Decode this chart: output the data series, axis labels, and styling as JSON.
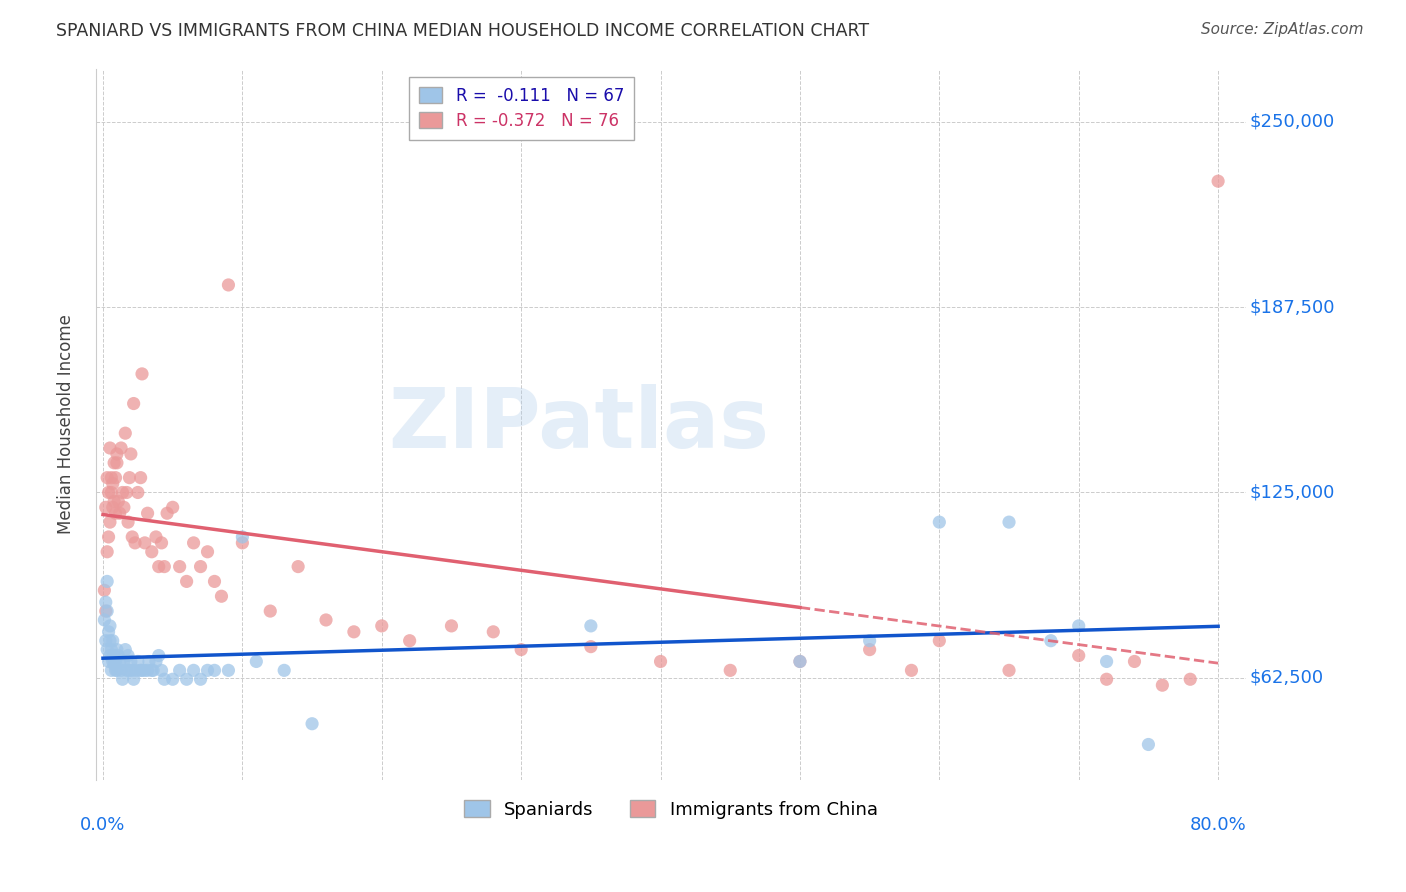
{
  "title": "SPANIARD VS IMMIGRANTS FROM CHINA MEDIAN HOUSEHOLD INCOME CORRELATION CHART",
  "source": "Source: ZipAtlas.com",
  "ylabel": "Median Household Income",
  "ytick_labels": [
    "$62,500",
    "$125,000",
    "$187,500",
    "$250,000"
  ],
  "ytick_values": [
    62500,
    125000,
    187500,
    250000
  ],
  "ylim": [
    28000,
    268000
  ],
  "xlim": [
    -0.005,
    0.82
  ],
  "watermark": "ZIPatlas",
  "spaniards_color": "#9fc5e8",
  "china_color": "#ea9999",
  "spaniards_line_color": "#1155cc",
  "china_line_color": "#e06070",
  "background_color": "#ffffff",
  "grid_color": "#cccccc",
  "legend_label_sp": "R =  -0.111   N = 67",
  "legend_label_ch": "R = -0.372   N = 76",
  "sp_x": [
    0.001,
    0.002,
    0.002,
    0.003,
    0.003,
    0.003,
    0.004,
    0.004,
    0.005,
    0.005,
    0.005,
    0.006,
    0.006,
    0.007,
    0.007,
    0.008,
    0.008,
    0.009,
    0.009,
    0.01,
    0.01,
    0.011,
    0.012,
    0.013,
    0.014,
    0.015,
    0.016,
    0.017,
    0.018,
    0.019,
    0.02,
    0.021,
    0.022,
    0.024,
    0.025,
    0.027,
    0.028,
    0.03,
    0.032,
    0.033,
    0.035,
    0.036,
    0.038,
    0.04,
    0.042,
    0.044,
    0.05,
    0.055,
    0.06,
    0.065,
    0.07,
    0.075,
    0.08,
    0.09,
    0.1,
    0.11,
    0.13,
    0.15,
    0.35,
    0.5,
    0.55,
    0.6,
    0.65,
    0.68,
    0.7,
    0.72,
    0.75
  ],
  "sp_y": [
    82000,
    75000,
    88000,
    95000,
    72000,
    85000,
    78000,
    68000,
    75000,
    70000,
    80000,
    65000,
    72000,
    68000,
    75000,
    67000,
    70000,
    65000,
    68000,
    72000,
    65000,
    70000,
    68000,
    65000,
    62000,
    68000,
    72000,
    65000,
    70000,
    65000,
    68000,
    65000,
    62000,
    65000,
    68000,
    65000,
    65000,
    65000,
    65000,
    68000,
    65000,
    65000,
    68000,
    70000,
    65000,
    62000,
    62000,
    65000,
    62000,
    65000,
    62000,
    65000,
    65000,
    65000,
    110000,
    68000,
    65000,
    47000,
    80000,
    68000,
    75000,
    115000,
    115000,
    75000,
    80000,
    68000,
    40000
  ],
  "ch_x": [
    0.001,
    0.002,
    0.002,
    0.003,
    0.003,
    0.004,
    0.004,
    0.005,
    0.005,
    0.006,
    0.006,
    0.007,
    0.007,
    0.008,
    0.008,
    0.009,
    0.009,
    0.01,
    0.01,
    0.011,
    0.012,
    0.013,
    0.014,
    0.015,
    0.016,
    0.017,
    0.018,
    0.019,
    0.02,
    0.021,
    0.022,
    0.023,
    0.025,
    0.027,
    0.028,
    0.03,
    0.032,
    0.035,
    0.038,
    0.04,
    0.042,
    0.044,
    0.046,
    0.05,
    0.055,
    0.06,
    0.065,
    0.07,
    0.075,
    0.08,
    0.085,
    0.09,
    0.1,
    0.12,
    0.14,
    0.16,
    0.18,
    0.2,
    0.22,
    0.25,
    0.28,
    0.3,
    0.35,
    0.4,
    0.45,
    0.5,
    0.55,
    0.58,
    0.6,
    0.65,
    0.7,
    0.72,
    0.74,
    0.76,
    0.78,
    0.8
  ],
  "ch_y": [
    92000,
    85000,
    120000,
    105000,
    130000,
    110000,
    125000,
    140000,
    115000,
    130000,
    125000,
    120000,
    128000,
    135000,
    122000,
    118000,
    130000,
    138000,
    135000,
    122000,
    118000,
    140000,
    125000,
    120000,
    145000,
    125000,
    115000,
    130000,
    138000,
    110000,
    155000,
    108000,
    125000,
    130000,
    165000,
    108000,
    118000,
    105000,
    110000,
    100000,
    108000,
    100000,
    118000,
    120000,
    100000,
    95000,
    108000,
    100000,
    105000,
    95000,
    90000,
    195000,
    108000,
    85000,
    100000,
    82000,
    78000,
    80000,
    75000,
    80000,
    78000,
    72000,
    73000,
    68000,
    65000,
    68000,
    72000,
    65000,
    75000,
    65000,
    70000,
    62000,
    68000,
    60000,
    62000,
    230000
  ]
}
